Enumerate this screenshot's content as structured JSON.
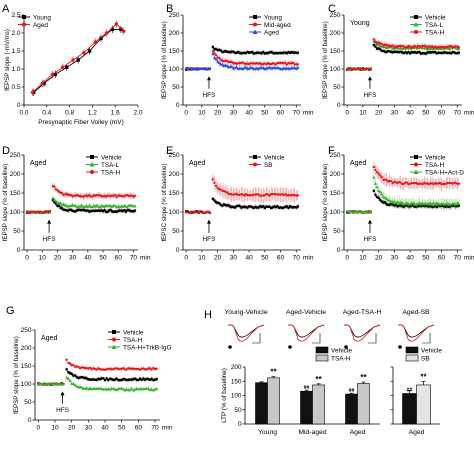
{
  "panels": [
    {
      "letter": "A",
      "chart_data": {
        "type": "line",
        "xlabel": "Presynaptic Fiber Volley (mV)",
        "ylabel": "fEPSP slope (-mV/ms)",
        "xlim": [
          0,
          2.0
        ],
        "ylim": [
          0,
          2.5
        ],
        "xticks": [
          0.0,
          0.4,
          0.8,
          1.2,
          1.6,
          2.0
        ],
        "xticklabels": [
          "0.0",
          "0.4",
          "0.8",
          "1.2",
          "1.6",
          "2.0"
        ],
        "yticks": [
          0,
          0.5,
          1.0,
          1.5,
          2.0,
          2.5
        ],
        "yticklabels": [
          "0",
          "0.5",
          "1.0",
          "1.5",
          "2.0",
          "2.5"
        ],
        "legend_position": "top-left",
        "series": [
          {
            "name": "Young",
            "color": "#000000",
            "marker": "square",
            "x": [
              0.17,
              0.35,
              0.55,
              0.75,
              0.95,
              1.15,
              1.35,
              1.55,
              1.7
            ],
            "y": [
              0.35,
              0.6,
              0.85,
              1.05,
              1.25,
              1.5,
              1.85,
              2.1,
              2.1
            ]
          },
          {
            "name": "Aged",
            "color": "#e8151b",
            "marker": "circle",
            "x": [
              0.15,
              0.32,
              0.5,
              0.68,
              0.86,
              1.05,
              1.25,
              1.45,
              1.62,
              1.75
            ],
            "y": [
              0.35,
              0.6,
              0.85,
              1.05,
              1.25,
              1.45,
              1.75,
              2.0,
              2.25,
              2.05
            ]
          }
        ]
      }
    },
    {
      "letter": "B",
      "chart_data": {
        "type": "line",
        "xlabel": "",
        "ylabel": "fEPSP slope (% of baseline)",
        "unit": "min",
        "xlim": [
          -2,
          73
        ],
        "ylim": [
          0,
          250
        ],
        "xticks": [
          0,
          10,
          20,
          30,
          40,
          50,
          60,
          70
        ],
        "yticks": [
          0,
          50,
          100,
          150,
          200,
          250
        ],
        "legend_position": "top-right",
        "hfs_label": "HFS",
        "hfs_time": 16,
        "series": [
          {
            "name": "Young",
            "color": "#000000",
            "marker": "square",
            "base": 100,
            "peak": 160,
            "plateau": 145,
            "sem": 5
          },
          {
            "name": "Mid-aged",
            "color": "#e8151b",
            "marker": "circle",
            "base": 100,
            "peak": 150,
            "plateau": 115,
            "sem": 6
          },
          {
            "name": "Aged",
            "color": "#2b4bd6",
            "marker": "triangle",
            "base": 100,
            "peak": 140,
            "plateau": 102,
            "sem": 6
          }
        ]
      }
    },
    {
      "letter": "C",
      "panel_label": "Young",
      "chart_data": {
        "type": "line",
        "xlabel": "",
        "ylabel": "fEPSP slope (% of baseline)",
        "unit": "min",
        "xlim": [
          -2,
          73
        ],
        "ylim": [
          0,
          250
        ],
        "xticks": [
          0,
          10,
          20,
          30,
          40,
          50,
          60,
          70
        ],
        "yticks": [
          0,
          50,
          100,
          150,
          200,
          250
        ],
        "legend_position": "top-right",
        "hfs_label": "HFS",
        "hfs_time": 16,
        "series": [
          {
            "name": "Vehicle",
            "color": "#000000",
            "marker": "square",
            "base": 100,
            "peak": 165,
            "plateau": 145,
            "sem": 5
          },
          {
            "name": "TSA-L",
            "color": "#37b12b",
            "marker": "triangle",
            "base": 100,
            "peak": 175,
            "plateau": 158,
            "sem": 6
          },
          {
            "name": "TSA-H",
            "color": "#e8151b",
            "marker": "circle",
            "base": 100,
            "peak": 180,
            "plateau": 162,
            "sem": 7
          }
        ]
      }
    },
    {
      "letter": "D",
      "panel_label": "Aged",
      "chart_data": {
        "type": "line",
        "xlabel": "",
        "ylabel": "fEPSP slope (% of baseline)",
        "unit": "min",
        "xlim": [
          -2,
          73
        ],
        "ylim": [
          0,
          250
        ],
        "xticks": [
          0,
          10,
          20,
          30,
          40,
          50,
          60,
          70
        ],
        "yticks": [
          0,
          50,
          100,
          150,
          200,
          250
        ],
        "legend_position": "top-right",
        "hfs_label": "HFS",
        "hfs_time": 16,
        "series": [
          {
            "name": "Vehicle",
            "color": "#000000",
            "marker": "square",
            "base": 100,
            "peak": 130,
            "plateau": 103,
            "sem": 5
          },
          {
            "name": "TSA-L",
            "color": "#37b12b",
            "marker": "triangle",
            "base": 100,
            "peak": 135,
            "plateau": 115,
            "sem": 5
          },
          {
            "name": "TSA-H",
            "color": "#e8151b",
            "marker": "circle",
            "base": 100,
            "peak": 170,
            "plateau": 142,
            "sem": 7
          }
        ]
      }
    },
    {
      "letter": "E",
      "panel_label": "Aged",
      "chart_data": {
        "type": "line",
        "xlabel": "",
        "ylabel": "fEPSC slope (% of baseline)",
        "unit": "min",
        "xlim": [
          -2,
          73
        ],
        "ylim": [
          0,
          250
        ],
        "xticks": [
          0,
          10,
          20,
          30,
          40,
          50,
          60,
          70
        ],
        "yticks": [
          0,
          50,
          100,
          150,
          200,
          250
        ],
        "legend_position": "top-right",
        "hfs_label": "HFS",
        "hfs_time": 16,
        "series": [
          {
            "name": "Vehicle",
            "color": "#000000",
            "marker": "square",
            "base": 100,
            "peak": 135,
            "plateau": 113,
            "sem": 5
          },
          {
            "name": "SB",
            "color": "#e8151b",
            "marker": "circle",
            "base": 100,
            "peak": 185,
            "plateau": 145,
            "sem": 16
          }
        ]
      }
    },
    {
      "letter": "F",
      "panel_label": "Aged",
      "chart_data": {
        "type": "line",
        "xlabel": "",
        "ylabel": "fEPSP slope (% of baseline)",
        "unit": "min",
        "xlim": [
          -2,
          73
        ],
        "ylim": [
          0,
          250
        ],
        "xticks": [
          0,
          10,
          20,
          30,
          40,
          50,
          60,
          70
        ],
        "yticks": [
          0,
          50,
          100,
          150,
          200,
          250
        ],
        "legend_position": "top-right",
        "hfs_label": "HFS",
        "hfs_time": 16,
        "series": [
          {
            "name": "Vehicle",
            "color": "#000000",
            "marker": "square",
            "base": 100,
            "peak": 155,
            "plateau": 115,
            "sem": 6
          },
          {
            "name": "TSA-H",
            "color": "#e8151b",
            "marker": "circle",
            "base": 100,
            "peak": 220,
            "plateau": 175,
            "sem": 14
          },
          {
            "name": "TSA-H+Act-D",
            "color": "#37b12b",
            "marker": "triangle",
            "base": 100,
            "peak": 190,
            "plateau": 122,
            "sem": 12
          }
        ]
      }
    },
    {
      "letter": "G",
      "panel_label": "Aged",
      "chart_data": {
        "type": "line",
        "xlabel": "",
        "ylabel": "fEPSP slope (% of baseline)",
        "unit": "min",
        "xlim": [
          -2,
          73
        ],
        "ylim": [
          0,
          250
        ],
        "xticks": [
          0,
          10,
          20,
          30,
          40,
          50,
          60,
          70
        ],
        "yticks": [
          0,
          50,
          100,
          150,
          200,
          250
        ],
        "legend_position": "top-right",
        "hfs_label": "HFS",
        "hfs_time": 16,
        "series": [
          {
            "name": "Vehicle",
            "color": "#000000",
            "marker": "square",
            "base": 100,
            "peak": 140,
            "plateau": 113,
            "sem": 5
          },
          {
            "name": "TSA-H",
            "color": "#e8151b",
            "marker": "circle",
            "base": 100,
            "peak": 165,
            "plateau": 142,
            "sem": 5
          },
          {
            "name": "TSA-H+TrkB-IgG",
            "color": "#37b12b",
            "marker": "triangle",
            "base": 100,
            "peak": 120,
            "plateau": 85,
            "sem": 5
          }
        ]
      }
    },
    {
      "letter": "H",
      "traces": {
        "labels": [
          "Young-Vehicle",
          "Aged-Vehicle",
          "Aged-TSA-H",
          "Aged-SB"
        ]
      },
      "chart_data": {
        "type": "bar",
        "xlabel": "",
        "ylabel": "LTP (% of baseline)",
        "ylim": [
          0,
          200
        ],
        "yticks": [
          0,
          50,
          100,
          150,
          200
        ],
        "groups": [
          {
            "categories": [
              "Young",
              "Mid-aged",
              "Aged"
            ],
            "series": [
              {
                "name": "Vehicle",
                "values": [
                  145,
                  115,
                  105
                ],
                "err": [
                  3,
                  4,
                  3
                ],
                "annot": [
                  "",
                  "##",
                  "##"
                ]
              },
              {
                "name": "TSA-H",
                "values": [
                  162,
                  137,
                  142
                ],
                "err": [
                  4,
                  4,
                  5
                ],
                "annot": [
                  "**",
                  "**",
                  "**"
                ]
              }
            ]
          },
          {
            "categories": [
              "Aged"
            ],
            "series": [
              {
                "name": "Vehicle",
                "values": [
                  107
                ],
                "err": [
                  10
                ],
                "annot": [
                  "##"
                ]
              },
              {
                "name": "SB",
                "values": [
                  137
                ],
                "err": [
                  12
                ],
                "annot": [
                  "**"
                ]
              }
            ]
          }
        ]
      }
    }
  ]
}
